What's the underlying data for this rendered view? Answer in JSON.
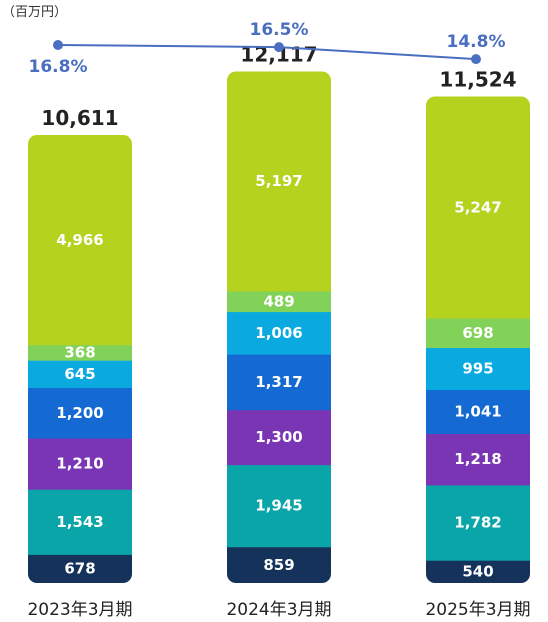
{
  "unit_label": "（百万円）",
  "chart_data": {
    "type": "bar",
    "stacked": true,
    "categories": [
      "2023年3月期",
      "2024年3月期",
      "2025年3月期"
    ],
    "totals": [
      "10,611",
      "12,117",
      "11,524"
    ],
    "series": [
      {
        "values": [
          678,
          859,
          540
        ],
        "labels": [
          "678",
          "859",
          "540"
        ],
        "color": "#14325a"
      },
      {
        "values": [
          1543,
          1945,
          1782
        ],
        "labels": [
          "1,543",
          "1,945",
          "1,782"
        ],
        "color": "#0aa5a8"
      },
      {
        "values": [
          1210,
          1300,
          1218
        ],
        "labels": [
          "1,210",
          "1,300",
          "1,218"
        ],
        "color": "#7a35b5"
      },
      {
        "values": [
          1200,
          1317,
          1041
        ],
        "labels": [
          "1,200",
          "1,317",
          "1,041"
        ],
        "color": "#1469d2"
      },
      {
        "values": [
          645,
          1006,
          995
        ],
        "labels": [
          "645",
          "1,006",
          "995"
        ],
        "color": "#0aaae1"
      },
      {
        "values": [
          368,
          489,
          698
        ],
        "labels": [
          "368",
          "489",
          "698"
        ],
        "color": "#82d25a"
      },
      {
        "values": [
          4966,
          5197,
          5247
        ],
        "labels": [
          "4,966",
          "5,197",
          "5,247"
        ],
        "color": "#b4d21e"
      }
    ],
    "line": {
      "values": [
        16.8,
        16.5,
        14.8
      ],
      "labels": [
        "16.8%",
        "16.5%",
        "14.8%"
      ],
      "color": "#4a6fc0"
    }
  }
}
